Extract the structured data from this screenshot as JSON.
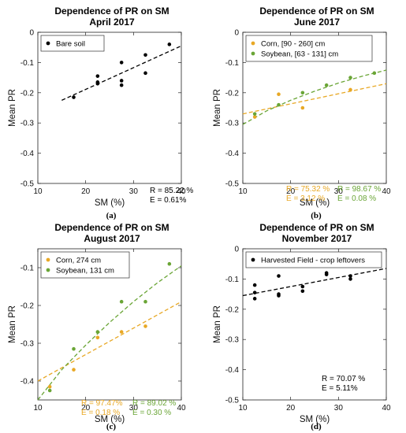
{
  "chart_data": [
    {
      "type": "scatter",
      "caption": "(a)",
      "title": "Dependence of PR on SM",
      "subtitle": "April 2017",
      "xlabel": "SM (%)",
      "ylabel": "Mean PR",
      "xlim": [
        10,
        40
      ],
      "ylim": [
        -0.5,
        0
      ],
      "xticks": [
        10,
        20,
        30,
        40
      ],
      "yticks": [
        0,
        -0.1,
        -0.2,
        -0.3,
        -0.4,
        -0.5
      ],
      "ytick_labels": [
        "0",
        "-0.1",
        "-0.2",
        "-0.3",
        "-0.4",
        "-0.5"
      ],
      "legend_position": "top-left",
      "series": [
        {
          "name": "Bare soil",
          "color": "#000000",
          "x": [
            17.5,
            22.5,
            22.5,
            22.5,
            27.5,
            27.5,
            27.5,
            32.5,
            32.5,
            37.5
          ],
          "y": [
            -0.215,
            -0.145,
            -0.165,
            -0.17,
            -0.1,
            -0.16,
            -0.175,
            -0.075,
            -0.135,
            -0.04
          ],
          "fit": {
            "x": [
              15,
              40
            ],
            "y": [
              -0.225,
              -0.045
            ]
          },
          "stats": [
            "R = 85.22 %",
            "E = 0.61%"
          ]
        }
      ]
    },
    {
      "type": "scatter",
      "caption": "(b)",
      "title": "Dependence of PR on SM",
      "subtitle": "June 2017",
      "xlabel": "SM (%)",
      "ylabel": "Mean PR",
      "xlim": [
        10,
        40
      ],
      "ylim": [
        -0.5,
        0
      ],
      "xticks": [
        10,
        20,
        30,
        40
      ],
      "yticks": [
        0,
        -0.1,
        -0.2,
        -0.3,
        -0.4,
        -0.5
      ],
      "ytick_labels": [
        "0",
        "-0.1",
        "-0.2",
        "-0.3",
        "-0.4",
        "-0.5"
      ],
      "legend_position": "top-left",
      "series": [
        {
          "name": "Corn, [90 - 260] cm",
          "color": "#e8a825",
          "x": [
            12.5,
            17.5,
            22.5,
            32.5
          ],
          "y": [
            -0.28,
            -0.205,
            -0.25,
            -0.19
          ],
          "fit": {
            "x": [
              10,
              40
            ],
            "y": [
              -0.27,
              -0.17
            ]
          },
          "stats": [
            "R = 75.32 %",
            "E = 3.12 %"
          ]
        },
        {
          "name": "Soybean, [63 - 131] cm",
          "color": "#6aa536",
          "x": [
            12.5,
            17.5,
            22.5,
            27.5,
            32.5,
            37.5
          ],
          "y": [
            -0.27,
            -0.24,
            -0.2,
            -0.175,
            -0.15,
            -0.135
          ],
          "fit": {
            "x": [
              10,
              15,
              20,
              25,
              30,
              35,
              40
            ],
            "y": [
              -0.305,
              -0.26,
              -0.225,
              -0.195,
              -0.168,
              -0.145,
              -0.125
            ]
          },
          "stats": [
            "R = 98.67 %",
            "E = 0.08 %"
          ]
        }
      ]
    },
    {
      "type": "scatter",
      "caption": "(c)",
      "title": "Dependence of PR on SM",
      "subtitle": "August 2017",
      "xlabel": "SM (%)",
      "ylabel": "Mean PR",
      "xlim": [
        10,
        40
      ],
      "ylim": [
        -0.45,
        -0.05
      ],
      "xticks": [
        10,
        20,
        30,
        40
      ],
      "yticks": [
        -0.1,
        -0.2,
        -0.3,
        -0.4
      ],
      "ytick_labels": [
        "-0.1",
        "-0.2",
        "-0.3",
        "-0.4"
      ],
      "legend_position": "top-left",
      "series": [
        {
          "name": "Corn, 274 cm",
          "color": "#e8a825",
          "x": [
            12.5,
            17.5,
            22.5,
            27.5,
            32.5
          ],
          "y": [
            -0.415,
            -0.37,
            -0.285,
            -0.27,
            -0.255
          ],
          "fit": {
            "x": [
              10,
              40
            ],
            "y": [
              -0.4,
              -0.19
            ]
          },
          "stats": [
            "R = 97.47%",
            "E = 0.18 %"
          ]
        },
        {
          "name": "Soybean, 131 cm",
          "color": "#6aa536",
          "x": [
            12.5,
            17.5,
            22.5,
            27.5,
            32.5,
            37.5
          ],
          "y": [
            -0.425,
            -0.315,
            -0.27,
            -0.19,
            -0.19,
            -0.09
          ],
          "fit": {
            "x": [
              10,
              15,
              20,
              25,
              30,
              35,
              40
            ],
            "y": [
              -0.45,
              -0.37,
              -0.305,
              -0.245,
              -0.19,
              -0.14,
              -0.095
            ]
          },
          "stats": [
            "R = 89.02 %",
            "E = 0.30 %"
          ]
        }
      ]
    },
    {
      "type": "scatter",
      "caption": "(d)",
      "title": "Dependence of PR on SM",
      "subtitle": "November 2017",
      "xlabel": "SM (%)",
      "ylabel": "Mean PR",
      "xlim": [
        10,
        40
      ],
      "ylim": [
        -0.5,
        0
      ],
      "xticks": [
        10,
        20,
        30,
        40
      ],
      "yticks": [
        0,
        -0.1,
        -0.2,
        -0.3,
        -0.4,
        -0.5
      ],
      "ytick_labels": [
        "0",
        "-0.1",
        "-0.2",
        "-0.3",
        "-0.4",
        "-0.5"
      ],
      "legend_position": "top-left",
      "series": [
        {
          "name": "Harvested Field - crop leftovers",
          "color": "#000000",
          "x": [
            12.5,
            12.5,
            12.5,
            17.5,
            17.5,
            17.5,
            22.5,
            22.5,
            27.5,
            27.5,
            32.5,
            32.5
          ],
          "y": [
            -0.12,
            -0.145,
            -0.165,
            -0.09,
            -0.15,
            -0.155,
            -0.125,
            -0.14,
            -0.08,
            -0.085,
            -0.09,
            -0.1
          ],
          "fit": {
            "x": [
              10,
              40
            ],
            "y": [
              -0.155,
              -0.065
            ]
          },
          "stats": [
            "R = 70.07 %",
            "E = 5.11%"
          ]
        }
      ]
    }
  ]
}
